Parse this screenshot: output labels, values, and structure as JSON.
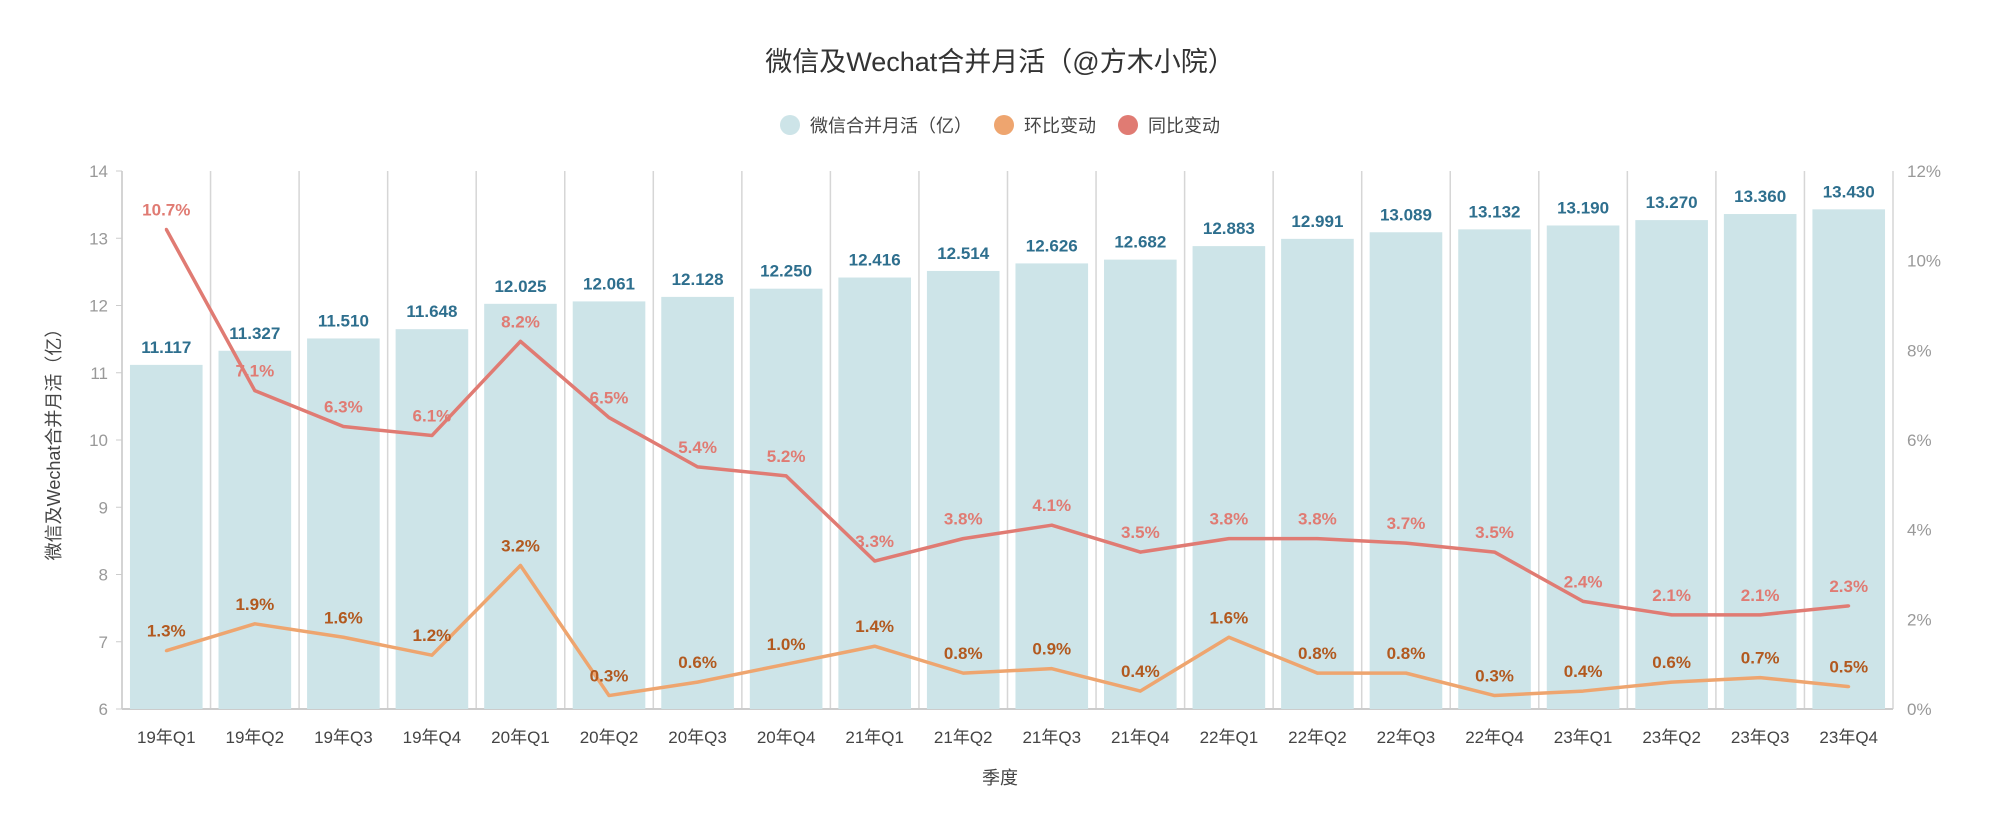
{
  "chart_data": {
    "type": "bar",
    "title": "微信及Wechat合并月活（@方木小院）",
    "xlabel": "季度",
    "ylabel": "微信及Wechat合并月活（亿）",
    "ylim": [
      6,
      14
    ],
    "y2lim": [
      0,
      12
    ],
    "yticks": [
      "6",
      "7",
      "8",
      "9",
      "10",
      "11",
      "12",
      "13",
      "14"
    ],
    "y2ticks": [
      "0%",
      "2%",
      "4%",
      "6%",
      "8%",
      "10%",
      "12%"
    ],
    "grid": "vertical",
    "legend_position": "top",
    "categories": [
      "19年Q1",
      "19年Q2",
      "19年Q3",
      "19年Q4",
      "20年Q1",
      "20年Q2",
      "20年Q3",
      "20年Q4",
      "21年Q1",
      "21年Q2",
      "21年Q3",
      "21年Q4",
      "22年Q1",
      "22年Q2",
      "22年Q3",
      "22年Q4",
      "23年Q1",
      "23年Q2",
      "23年Q3",
      "23年Q4"
    ],
    "series": [
      {
        "name": "微信合并月活（亿）",
        "type": "bar",
        "axis": "left",
        "color": "#cde4e8",
        "label_color": "#2e6f8e",
        "values": [
          11.117,
          11.327,
          11.51,
          11.648,
          12.025,
          12.061,
          12.128,
          12.25,
          12.416,
          12.514,
          12.626,
          12.682,
          12.883,
          12.991,
          13.089,
          13.132,
          13.19,
          13.27,
          13.36,
          13.43
        ],
        "labels": [
          "11.117",
          "11.327",
          "11.510",
          "11.648",
          "12.025",
          "12.061",
          "12.128",
          "12.250",
          "12.416",
          "12.514",
          "12.626",
          "12.682",
          "12.883",
          "12.991",
          "13.089",
          "13.132",
          "13.190",
          "13.270",
          "13.360",
          "13.430"
        ]
      },
      {
        "name": "环比变动",
        "type": "line",
        "axis": "right",
        "color": "#eea56f",
        "label_color": "#b2591f",
        "values": [
          1.3,
          1.9,
          1.6,
          1.2,
          3.2,
          0.3,
          0.6,
          1.0,
          1.4,
          0.8,
          0.9,
          0.4,
          1.6,
          0.8,
          0.8,
          0.3,
          0.4,
          0.6,
          0.7,
          0.5
        ]
      },
      {
        "name": "同比变动",
        "type": "line",
        "axis": "right",
        "color": "#e07b73",
        "label_color": "#e07b73",
        "values": [
          10.7,
          7.1,
          6.3,
          6.1,
          8.2,
          6.5,
          5.4,
          5.2,
          3.3,
          3.8,
          4.1,
          3.5,
          3.8,
          3.8,
          3.7,
          3.5,
          2.4,
          2.1,
          2.1,
          2.3
        ]
      }
    ]
  }
}
